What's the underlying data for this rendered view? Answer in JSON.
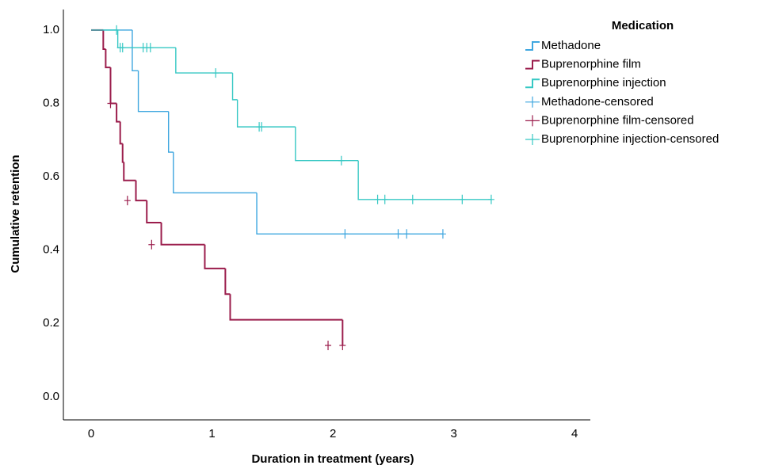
{
  "chart_data": {
    "type": "step",
    "x_label": "Duration in treatment (years)",
    "y_label": "Cumulative retention",
    "xlim": [
      -0.23,
      4.13
    ],
    "ylim": [
      -0.063,
      1.056
    ],
    "xticks": [
      0,
      1,
      2,
      3,
      4
    ],
    "yticks": [
      {
        "value": 0,
        "label": "0.0"
      },
      {
        "value": 0.2,
        "label": "0.2"
      },
      {
        "value": 0.4,
        "label": "0.4"
      },
      {
        "value": 0.6,
        "label": "0.6"
      },
      {
        "value": 0.8,
        "label": "0.8"
      },
      {
        "value": 1,
        "label": "1.0"
      }
    ],
    "legend_title": "Medication",
    "legend": "right",
    "series": [
      {
        "name": "Methadone",
        "kind": "survival",
        "color": "#3ea6df",
        "line_width": 1.4,
        "x": [
          0,
          0.34,
          0.39,
          0.64,
          0.68,
          1.37,
          2.91
        ],
        "values": [
          1,
          0.889,
          0.778,
          0.667,
          0.556,
          0.444,
          0.444
        ]
      },
      {
        "name": "Buprenorphine film",
        "kind": "survival",
        "color": "#9b1d4c",
        "line_width": 2,
        "x": [
          0,
          0.1,
          0.12,
          0.16,
          0.21,
          0.24,
          0.26,
          0.27,
          0.37,
          0.46,
          0.58,
          0.94,
          1.11,
          1.15,
          2.08
        ],
        "values": [
          1,
          0.948,
          0.898,
          0.8,
          0.75,
          0.69,
          0.64,
          0.59,
          0.535,
          0.475,
          0.415,
          0.35,
          0.28,
          0.21,
          0.14
        ]
      },
      {
        "name": "Buprenorphine injection",
        "kind": "survival",
        "color": "#36c8c4",
        "line_width": 1.4,
        "x": [
          0,
          0.22,
          0.7,
          1.17,
          1.21,
          1.69,
          2.21,
          3.31
        ],
        "values": [
          1,
          0.952,
          0.883,
          0.81,
          0.736,
          0.644,
          0.538,
          0.538
        ]
      },
      {
        "name": "Methadone-censored",
        "kind": "censored",
        "color": "#3ea6df",
        "x": [
          2.1,
          2.54,
          2.61,
          2.91
        ],
        "values": [
          0.444,
          0.444,
          0.444,
          0.444
        ]
      },
      {
        "name": "Buprenorphine film-censored",
        "kind": "censored",
        "color": "#9b1d4c",
        "x": [
          0.16,
          0.3,
          0.5,
          1.96,
          2.08
        ],
        "values": [
          0.8,
          0.535,
          0.415,
          0.14,
          0.14
        ]
      },
      {
        "name": "Buprenorphine injection-censored",
        "kind": "censored",
        "color": "#36c8c4",
        "x": [
          0.21,
          0.24,
          0.26,
          0.43,
          0.46,
          0.49,
          1.03,
          1.39,
          1.41,
          2.07,
          2.37,
          2.43,
          2.66,
          3.07,
          3.31
        ],
        "values": [
          1,
          0.952,
          0.952,
          0.952,
          0.952,
          0.952,
          0.883,
          0.736,
          0.736,
          0.644,
          0.538,
          0.538,
          0.538,
          0.538,
          0.538
        ]
      }
    ]
  }
}
